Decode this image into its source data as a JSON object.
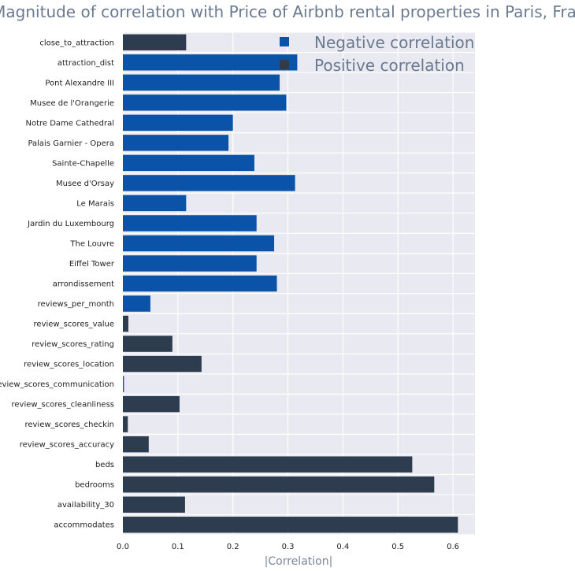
{
  "chart_data": {
    "type": "bar",
    "orientation": "horizontal",
    "title": "Magnitude of correlation with Price of Airbnb rental properties in Paris, France",
    "xlabel": "|Correlation|",
    "ylabel": "",
    "xlim": [
      0,
      0.64
    ],
    "xticks": [
      "0.0",
      "0.1",
      "0.2",
      "0.3",
      "0.4",
      "0.5",
      "0.6"
    ],
    "grid": true,
    "legend_position": "top-right",
    "colors": {
      "negative": "#0b53a8",
      "positive": "#2e3c50",
      "plot_background": "#e8e9f1",
      "gridline": "#ffffff"
    },
    "legend": [
      {
        "label": "Negative correlation",
        "key": "negative"
      },
      {
        "label": "Positive correlation",
        "key": "positive"
      }
    ],
    "categories": [
      "close_to_attraction",
      "attraction_dist",
      "Pont Alexandre III",
      "Musee de l'Orangerie",
      "Notre Dame Cathedral",
      "Palais Garnier - Opera",
      "Sainte-Chapelle",
      "Musee d'Orsay",
      "Le Marais",
      "Jardin du Luxembourg",
      "The Louvre",
      "Eiffel Tower",
      "arrondissement",
      "reviews_per_month",
      "review_scores_value",
      "review_scores_rating",
      "review_scores_location",
      "review_scores_communication",
      "review_scores_cleanliness",
      "review_scores_checkin",
      "review_scores_accuracy",
      "beds",
      "bedrooms",
      "availability_30",
      "accommodates"
    ],
    "values": [
      0.115,
      0.317,
      0.285,
      0.297,
      0.2,
      0.192,
      0.239,
      0.313,
      0.115,
      0.243,
      0.275,
      0.243,
      0.28,
      0.05,
      0.01,
      0.09,
      0.143,
      0.002,
      0.103,
      0.009,
      0.047,
      0.526,
      0.566,
      0.113,
      0.609
    ],
    "sign": [
      "positive",
      "negative",
      "negative",
      "negative",
      "negative",
      "negative",
      "negative",
      "negative",
      "negative",
      "negative",
      "negative",
      "negative",
      "negative",
      "negative",
      "positive",
      "positive",
      "positive",
      "negative",
      "positive",
      "positive",
      "positive",
      "positive",
      "positive",
      "positive",
      "positive"
    ]
  }
}
